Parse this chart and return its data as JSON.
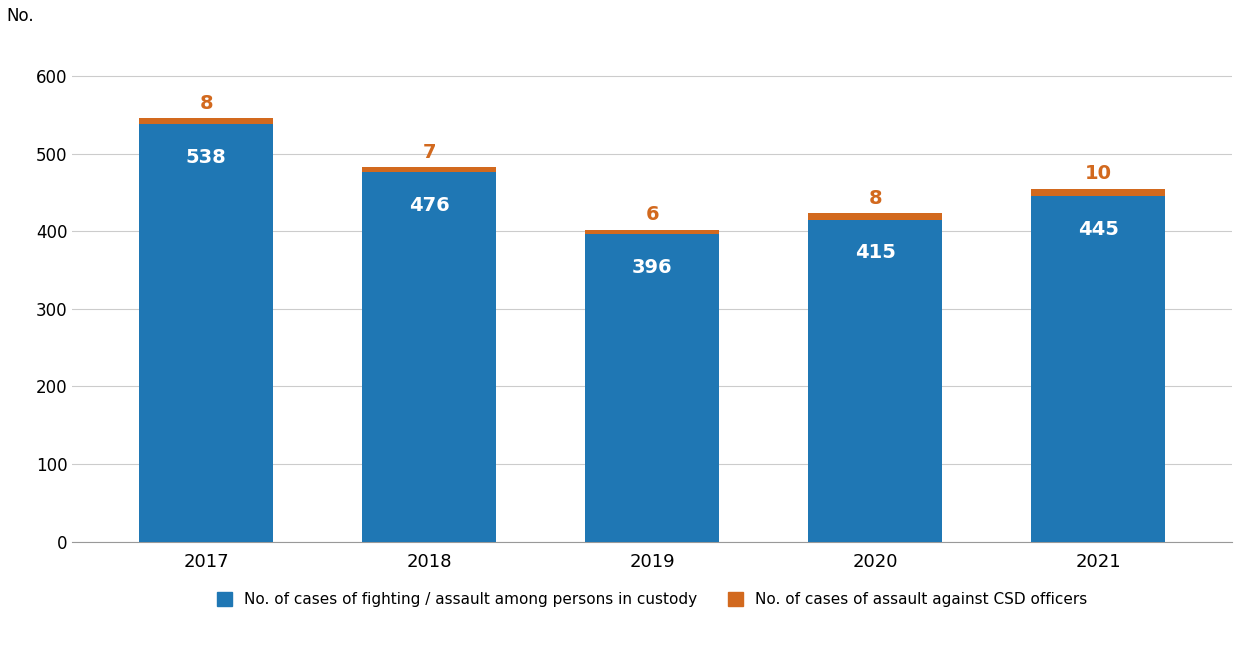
{
  "years": [
    "2017",
    "2018",
    "2019",
    "2020",
    "2021"
  ],
  "blue_values": [
    538,
    476,
    396,
    415,
    445
  ],
  "orange_values": [
    8,
    7,
    6,
    8,
    10
  ],
  "blue_color": "#1F77B4",
  "orange_color": "#D2691E",
  "ylabel": "No.",
  "ylim": [
    0,
    640
  ],
  "yticks": [
    0,
    100,
    200,
    300,
    400,
    500,
    600
  ],
  "blue_label": "No. of cases of fighting / assault among persons in custody",
  "orange_label": "No. of cases of assault against CSD officers",
  "blue_font_color": "#FFFFFF",
  "orange_font_color": "#D2691E",
  "grid_color": "#CCCCCC",
  "background_color": "#FFFFFF",
  "bar_width": 0.6,
  "blue_fontsize": 14,
  "orange_fontsize": 14
}
